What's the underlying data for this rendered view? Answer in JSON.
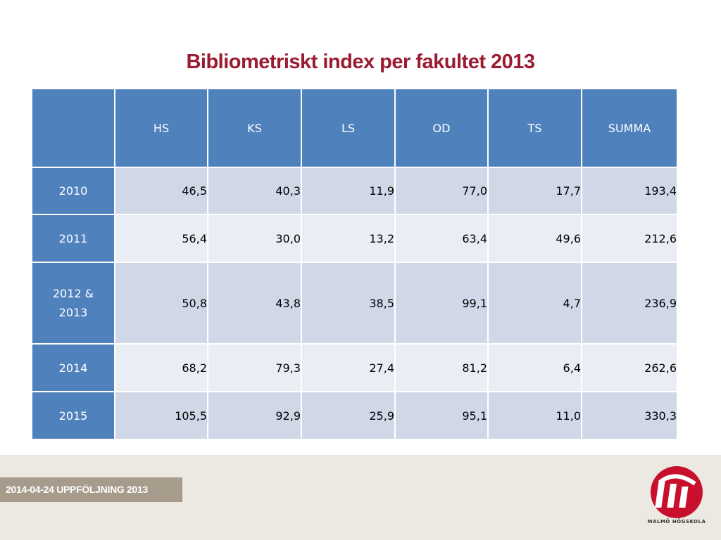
{
  "title": "Bibliometriskt index per fakultet 2013",
  "table": {
    "corner": "",
    "columns": [
      "HS",
      "KS",
      "LS",
      "OD",
      "TS",
      "SUMMA"
    ],
    "rows": [
      {
        "label": "2010",
        "values": [
          "46,5",
          "40,3",
          "11,9",
          "77,0",
          "17,7",
          "193,4"
        ]
      },
      {
        "label": "2011",
        "values": [
          "56,4",
          "30,0",
          "13,2",
          "63,4",
          "49,6",
          "212,6"
        ]
      },
      {
        "label": "2012 & 2013",
        "values": [
          "50,8",
          "43,8",
          "38,5",
          "99,1",
          "4,7",
          "236,9"
        ]
      },
      {
        "label": "2014",
        "values": [
          "68,2",
          "79,3",
          "27,4",
          "81,2",
          "6,4",
          "262,6"
        ]
      },
      {
        "label": "2015",
        "values": [
          "105,5",
          "92,9",
          "25,9",
          "95,1",
          "11,0",
          "330,3"
        ]
      }
    ]
  },
  "footer": {
    "tag": "2014-04-24  UPPFÖLJNING 2013",
    "logo_text": "MALMÖ HÖGSKOLA",
    "logo_icon": "malmo-hogskola-logo-icon"
  },
  "colors": {
    "title": "#9b1b30",
    "header": "#4f81bd",
    "row_odd": "#d0d8e8",
    "row_even": "#e9edf4",
    "footer_band": "#ece8e2",
    "footer_tag": "#a79b8b",
    "logo": "#c8102e"
  }
}
